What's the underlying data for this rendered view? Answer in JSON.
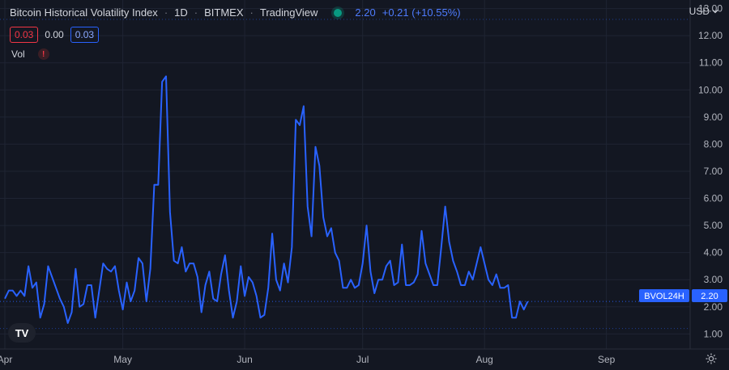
{
  "header": {
    "title": "Bitcoin Historical Volatility Index",
    "interval": "1D",
    "exchange": "BITMEX",
    "provider": "TradingView",
    "last_value": "2.20",
    "change": "+0.21 (+10.55%)",
    "status_color": "#089981"
  },
  "ohlc": {
    "left_box": "0.03",
    "middle": "0.00",
    "right_box": "0.03"
  },
  "volume": {
    "label": "Vol",
    "warning_icon": "warning-icon"
  },
  "currency": {
    "label": "USD",
    "icon": "chevron-down-icon"
  },
  "price_tag": {
    "name": "BVOL24H",
    "value": "2.20"
  },
  "logo": {
    "text": "TV"
  },
  "settings": {
    "icon": "gear-icon"
  },
  "colors": {
    "background": "#131722",
    "line": "#2962ff",
    "grid": "#1f2433"
  },
  "chart_data": {
    "type": "line",
    "title": "",
    "xlabel": "",
    "ylabel": "",
    "ylim": [
      0.4,
      13.3
    ],
    "y_ticks": [
      "1.00",
      "2.00",
      "3.00",
      "4.00",
      "5.00",
      "6.00",
      "7.00",
      "8.00",
      "9.00",
      "10.00",
      "11.00",
      "12.00",
      "13.00"
    ],
    "x_ticks": [
      {
        "label": "Apr",
        "day": 0
      },
      {
        "label": "May",
        "day": 30
      },
      {
        "label": "Jun",
        "day": 61
      },
      {
        "label": "Jul",
        "day": 91
      },
      {
        "label": "Aug",
        "day": 122
      },
      {
        "label": "Sep",
        "day": 153
      }
    ],
    "x_range_days": [
      0,
      178
    ],
    "reference_lines": [
      12.6,
      2.2,
      1.2
    ],
    "series": [
      {
        "values": [
          2.3,
          2.6,
          2.6,
          2.4,
          2.6,
          2.4,
          3.5,
          2.7,
          2.9,
          1.6,
          2.1,
          3.5,
          3.1,
          2.7,
          2.3,
          2.0,
          1.4,
          1.8,
          3.4,
          2.0,
          2.1,
          2.8,
          2.8,
          1.6,
          2.6,
          3.6,
          3.4,
          3.3,
          3.5,
          2.6,
          1.9,
          2.9,
          2.2,
          2.6,
          3.8,
          3.6,
          2.2,
          3.4,
          6.5,
          6.5,
          10.3,
          10.5,
          5.5,
          3.7,
          3.6,
          4.2,
          3.3,
          3.6,
          3.6,
          3.1,
          1.8,
          2.8,
          3.3,
          2.3,
          2.2,
          3.2,
          3.9,
          2.6,
          1.6,
          2.2,
          3.5,
          2.4,
          3.1,
          2.9,
          2.4,
          1.6,
          1.7,
          2.7,
          4.7,
          3.0,
          2.6,
          3.6,
          2.9,
          4.2,
          8.9,
          8.7,
          9.4,
          5.7,
          4.6,
          7.9,
          7.2,
          5.3,
          4.6,
          4.9,
          4.0,
          3.7,
          2.7,
          2.7,
          3.0,
          2.7,
          2.8,
          3.6,
          5.0,
          3.3,
          2.5,
          3.0,
          3.0,
          3.5,
          3.7,
          2.8,
          2.9,
          4.3,
          2.8,
          2.8,
          2.9,
          3.2,
          4.8,
          3.6,
          3.2,
          2.8,
          2.8,
          4.2,
          5.7,
          4.4,
          3.7,
          3.3,
          2.8,
          2.8,
          3.3,
          3.0,
          3.6,
          4.2,
          3.6,
          3.0,
          2.8,
          3.2,
          2.7,
          2.7,
          2.8,
          1.6,
          1.6,
          2.2,
          1.9,
          2.2
        ]
      }
    ]
  }
}
